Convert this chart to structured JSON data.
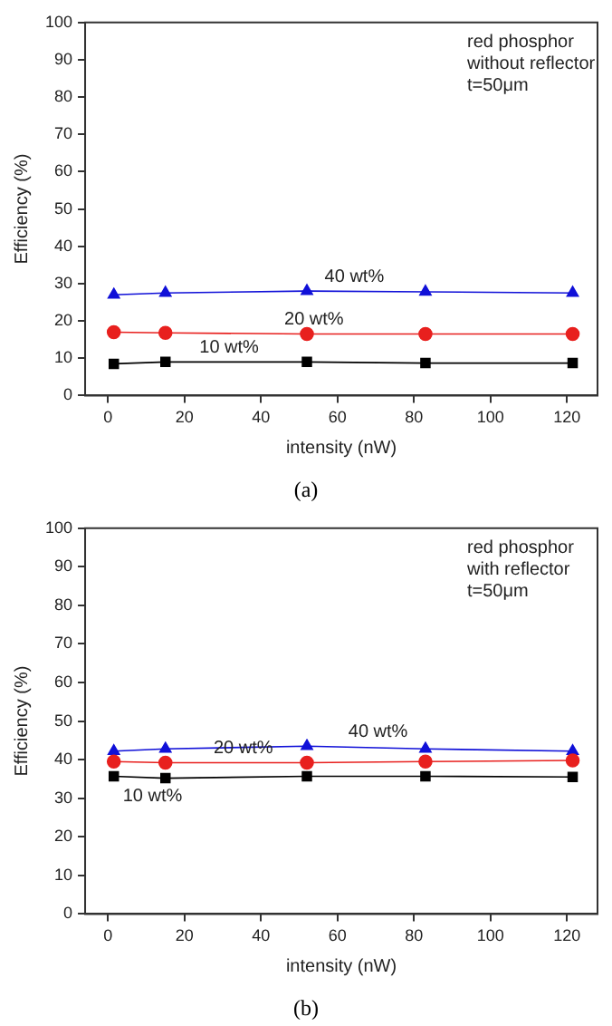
{
  "chart_data": [
    {
      "type": "line",
      "xlabel": "intensity (nW)",
      "ylabel": "Efficiency (%)",
      "x": [
        1.5,
        15,
        52,
        83,
        121.5
      ],
      "series": [
        {
          "name": "10 wt%",
          "color": "#000000",
          "marker": "square",
          "values": [
            8.5,
            9,
            9,
            8.7,
            8.7
          ]
        },
        {
          "name": "20 wt%",
          "color": "#e8201e",
          "marker": "circle",
          "values": [
            17,
            16.8,
            16.5,
            16.5,
            16.5
          ]
        },
        {
          "name": "40 wt%",
          "color": "#1010d8",
          "marker": "triangle",
          "values": [
            27,
            27.5,
            28,
            27.8,
            27.5
          ]
        }
      ],
      "xlim": [
        -6,
        128
      ],
      "xticks": [
        0,
        20,
        40,
        60,
        80,
        100,
        120
      ],
      "ylim": [
        0,
        100
      ],
      "yticks": [
        0,
        10,
        20,
        30,
        40,
        50,
        60,
        70,
        80,
        90,
        100
      ],
      "grid": false,
      "legend": false,
      "annotations": [
        "red phosphor",
        "without reflector",
        "t=50μm",
        "(a)"
      ]
    },
    {
      "type": "line",
      "xlabel": "intensity (nW)",
      "ylabel": "Efficiency (%)",
      "x": [
        1.5,
        15,
        52,
        83,
        121.5
      ],
      "series": [
        {
          "name": "10 wt%",
          "color": "#000000",
          "marker": "square",
          "values": [
            35.7,
            35.2,
            35.7,
            35.7,
            35.5
          ]
        },
        {
          "name": "20 wt%",
          "color": "#e8201e",
          "marker": "circle",
          "values": [
            39.5,
            39.2,
            39.2,
            39.5,
            39.8
          ]
        },
        {
          "name": "40 wt%",
          "color": "#1010d8",
          "marker": "triangle",
          "values": [
            42.2,
            42.8,
            43.5,
            42.8,
            42.2
          ]
        }
      ],
      "xlim": [
        -6,
        128
      ],
      "xticks": [
        0,
        20,
        40,
        60,
        80,
        100,
        120
      ],
      "ylim": [
        0,
        100
      ],
      "yticks": [
        0,
        10,
        20,
        30,
        40,
        50,
        60,
        70,
        80,
        90,
        100
      ],
      "grid": false,
      "legend": false,
      "annotations": [
        "red phosphor",
        "with reflector",
        "t=50μm",
        "(b)"
      ]
    }
  ]
}
